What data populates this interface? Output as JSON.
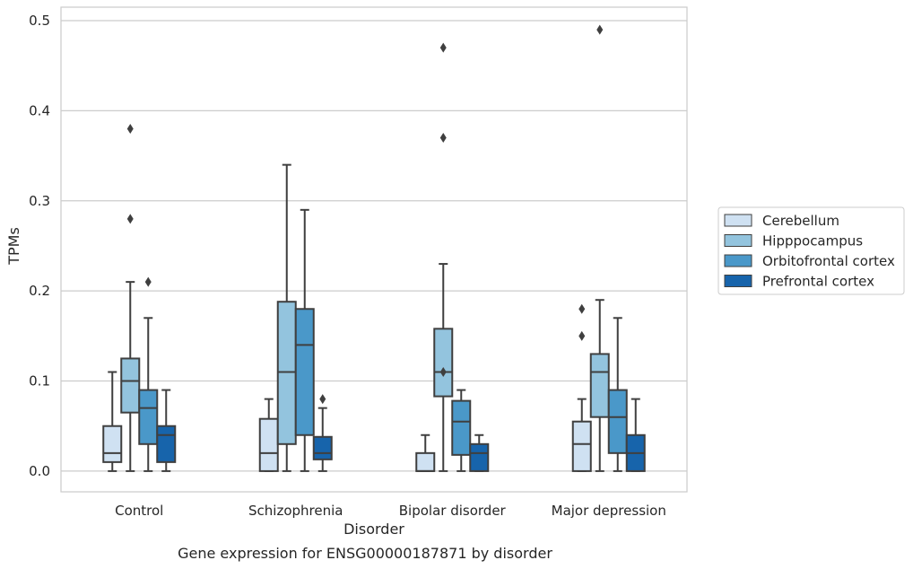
{
  "chart_data": {
    "type": "box",
    "title": "Gene expression for ENSG00000187871 by disorder",
    "xlabel": "Disorder",
    "ylabel": "TPMs",
    "ylim": [
      -0.023,
      0.515
    ],
    "yticks": [
      0.0,
      0.1,
      0.2,
      0.3,
      0.4,
      0.5
    ],
    "ytick_labels": [
      "0.0",
      "0.1",
      "0.2",
      "0.3",
      "0.4",
      "0.5"
    ],
    "categories": [
      "Control",
      "Schizophrenia",
      "Bipolar disorder",
      "Major depression"
    ],
    "grid": true,
    "legend_position": "right",
    "series": [
      {
        "name": "Cerebellum",
        "color": "#cfe1f2",
        "boxes": [
          {
            "whislo": 0.0,
            "q1": 0.01,
            "med": 0.02,
            "q3": 0.05,
            "whishi": 0.11,
            "fliers": []
          },
          {
            "whislo": 0.0,
            "q1": 0.0,
            "med": 0.02,
            "q3": 0.058,
            "whishi": 0.08,
            "fliers": []
          },
          {
            "whislo": 0.0,
            "q1": 0.0,
            "med": 0.0,
            "q3": 0.02,
            "whishi": 0.04,
            "fliers": []
          },
          {
            "whislo": 0.0,
            "q1": 0.0,
            "med": 0.03,
            "q3": 0.055,
            "whishi": 0.08,
            "fliers": [
              0.15,
              0.18
            ]
          }
        ]
      },
      {
        "name": "Hipppocampus",
        "color": "#93c4de",
        "boxes": [
          {
            "whislo": 0.0,
            "q1": 0.065,
            "med": 0.1,
            "q3": 0.125,
            "whishi": 0.21,
            "fliers": [
              0.28,
              0.38
            ]
          },
          {
            "whislo": 0.0,
            "q1": 0.03,
            "med": 0.11,
            "q3": 0.188,
            "whishi": 0.34,
            "fliers": []
          },
          {
            "whislo": 0.0,
            "q1": 0.083,
            "med": 0.11,
            "q3": 0.158,
            "whishi": 0.23,
            "fliers": [
              0.11,
              0.37,
              0.47
            ]
          },
          {
            "whislo": 0.0,
            "q1": 0.06,
            "med": 0.11,
            "q3": 0.13,
            "whishi": 0.19,
            "fliers": [
              0.49
            ]
          }
        ]
      },
      {
        "name": "Orbitofrontal cortex",
        "color": "#4a98c9",
        "boxes": [
          {
            "whislo": 0.0,
            "q1": 0.03,
            "med": 0.07,
            "q3": 0.09,
            "whishi": 0.17,
            "fliers": [
              0.21
            ]
          },
          {
            "whislo": 0.0,
            "q1": 0.04,
            "med": 0.14,
            "q3": 0.18,
            "whishi": 0.29,
            "fliers": []
          },
          {
            "whislo": 0.0,
            "q1": 0.018,
            "med": 0.055,
            "q3": 0.078,
            "whishi": 0.09,
            "fliers": []
          },
          {
            "whislo": 0.0,
            "q1": 0.02,
            "med": 0.06,
            "q3": 0.09,
            "whishi": 0.17,
            "fliers": []
          }
        ]
      },
      {
        "name": "Prefrontal cortex",
        "color": "#1764ab",
        "boxes": [
          {
            "whislo": 0.0,
            "q1": 0.01,
            "med": 0.04,
            "q3": 0.05,
            "whishi": 0.09,
            "fliers": []
          },
          {
            "whislo": 0.0,
            "q1": 0.013,
            "med": 0.02,
            "q3": 0.038,
            "whishi": 0.07,
            "fliers": [
              0.08
            ]
          },
          {
            "whislo": 0.0,
            "q1": 0.0,
            "med": 0.02,
            "q3": 0.03,
            "whishi": 0.04,
            "fliers": []
          },
          {
            "whislo": 0.0,
            "q1": 0.0,
            "med": 0.02,
            "q3": 0.04,
            "whishi": 0.08,
            "fliers": []
          }
        ]
      }
    ]
  }
}
